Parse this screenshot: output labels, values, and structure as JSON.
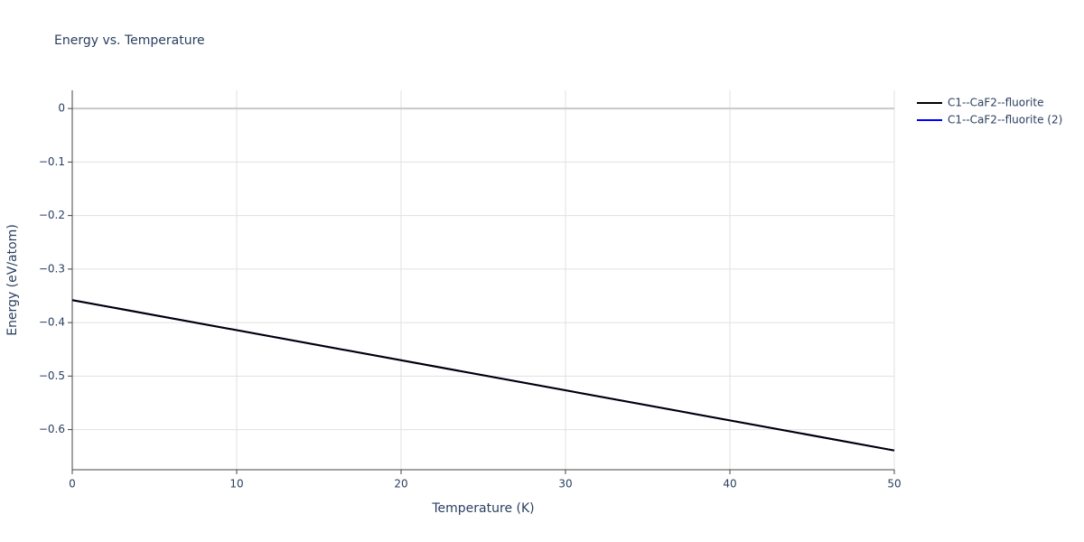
{
  "chart_data": {
    "type": "line",
    "title": "Energy vs. Temperature",
    "x_label": "Temperature (K)",
    "y_label": "Energy (eV/atom)",
    "x": [
      0,
      50
    ],
    "series": [
      {
        "name": "C1--CaF2--fluorite",
        "color": "#000000",
        "values": [
          -0.358,
          -0.639
        ]
      },
      {
        "name": "C1--CaF2--fluorite (2)",
        "color": "#0000ff",
        "values": [
          -0.358,
          -0.639
        ]
      }
    ],
    "xlim": [
      0,
      50
    ],
    "xticks": [
      0,
      10,
      20,
      30,
      40,
      50
    ],
    "ylim": [
      -0.675,
      0.034
    ],
    "yticks": [
      {
        "value": 0,
        "label": "0"
      },
      {
        "value": -0.1,
        "label": "−0.1"
      },
      {
        "value": -0.2,
        "label": "−0.2"
      },
      {
        "value": -0.3,
        "label": "−0.3"
      },
      {
        "value": -0.4,
        "label": "−0.4"
      },
      {
        "value": -0.5,
        "label": "−0.5"
      },
      {
        "value": -0.6,
        "label": "−0.6"
      }
    ],
    "grid": true,
    "legend": "right"
  }
}
